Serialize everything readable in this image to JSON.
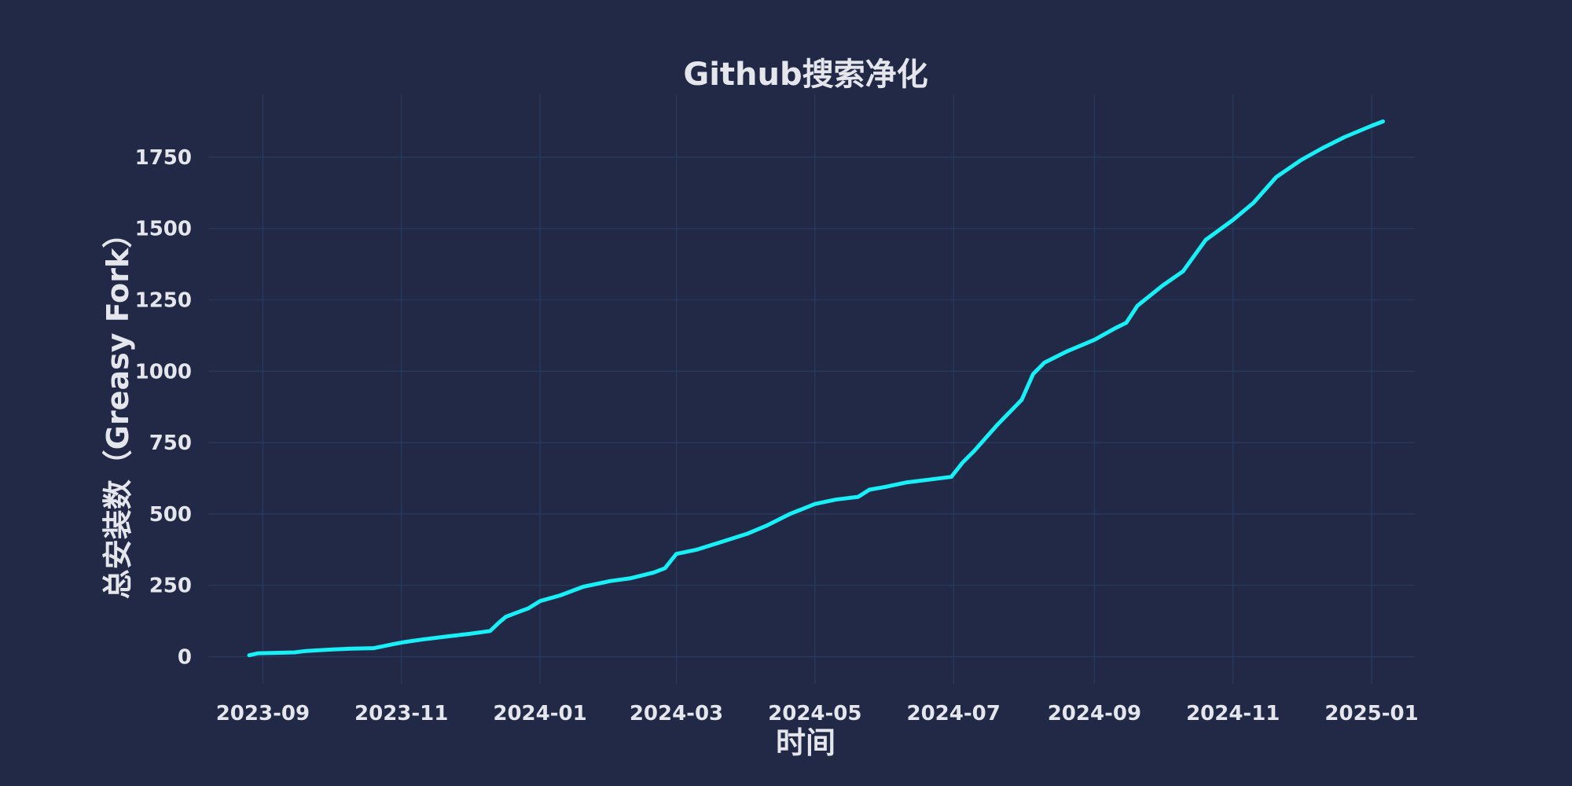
{
  "chart_data": {
    "type": "line",
    "title": "Github搜索净化",
    "xlabel": "时间",
    "ylabel": "总安装数（Greasy Fork）",
    "x_ticks": [
      "2023-09",
      "2023-11",
      "2024-01",
      "2024-03",
      "2024-05",
      "2024-07",
      "2024-09",
      "2024-11",
      "2025-01"
    ],
    "y_ticks": [
      0,
      250,
      500,
      750,
      1000,
      1250,
      1500,
      1750
    ],
    "xlim": [
      "2023-08-08",
      "2025-01-20"
    ],
    "ylim": [
      -95,
      1970
    ],
    "grid": true,
    "colors": {
      "background": "#212946",
      "line": "#18f0f8",
      "grid": "#2a3a5e",
      "text": "#e4e6ec"
    },
    "series": [
      {
        "x": [
          "2023-08-26",
          "2023-08-30",
          "2023-09-05",
          "2023-09-15",
          "2023-09-20",
          "2023-10-01",
          "2023-10-10",
          "2023-10-20",
          "2023-10-29",
          "2023-11-03",
          "2023-11-10",
          "2023-11-20",
          "2023-12-01",
          "2023-12-10",
          "2023-12-14",
          "2023-12-17",
          "2023-12-22",
          "2023-12-27",
          "2024-01-01",
          "2024-01-10",
          "2024-01-20",
          "2024-02-01",
          "2024-02-10",
          "2024-02-20",
          "2024-02-25",
          "2024-03-01",
          "2024-03-10",
          "2024-03-20",
          "2024-04-01",
          "2024-04-10",
          "2024-04-20",
          "2024-05-01",
          "2024-05-10",
          "2024-05-20",
          "2024-05-25",
          "2024-06-01",
          "2024-06-10",
          "2024-06-20",
          "2024-06-30",
          "2024-07-05",
          "2024-07-10",
          "2024-07-20",
          "2024-07-31",
          "2024-08-05",
          "2024-08-10",
          "2024-08-20",
          "2024-09-01",
          "2024-09-10",
          "2024-09-15",
          "2024-09-20",
          "2024-10-01",
          "2024-10-10",
          "2024-10-20",
          "2024-11-01",
          "2024-11-10",
          "2024-11-20",
          "2024-12-01",
          "2024-12-10",
          "2024-12-20",
          "2025-01-01",
          "2025-01-06"
        ],
        "y": [
          5,
          12,
          13,
          15,
          20,
          25,
          28,
          30,
          45,
          52,
          60,
          70,
          80,
          90,
          120,
          140,
          155,
          170,
          195,
          215,
          245,
          265,
          275,
          295,
          310,
          360,
          375,
          400,
          430,
          460,
          500,
          535,
          550,
          560,
          585,
          595,
          610,
          620,
          630,
          680,
          720,
          810,
          900,
          990,
          1030,
          1070,
          1110,
          1150,
          1170,
          1230,
          1300,
          1350,
          1460,
          1530,
          1590,
          1680,
          1740,
          1780,
          1820,
          1860,
          1875
        ]
      }
    ]
  }
}
